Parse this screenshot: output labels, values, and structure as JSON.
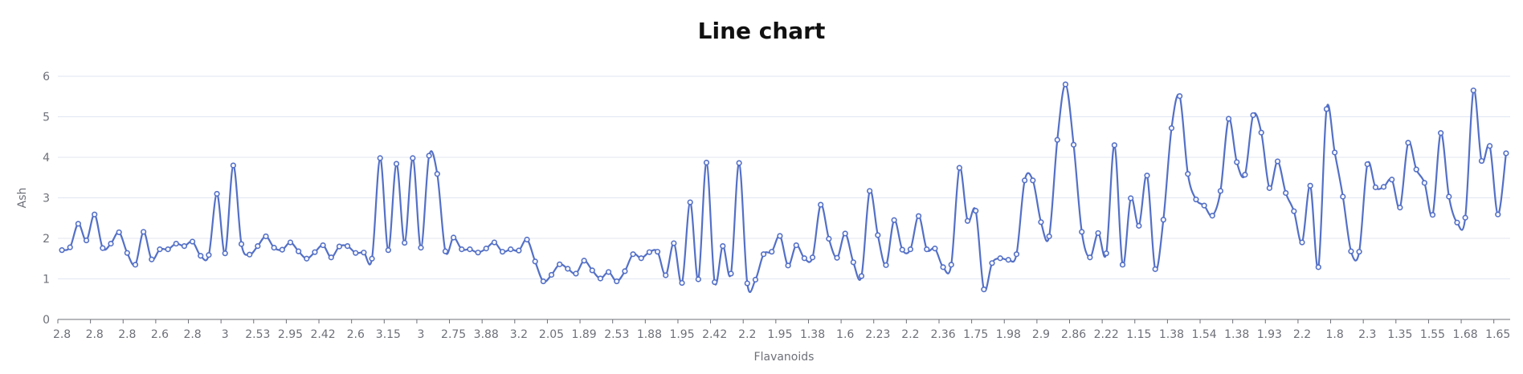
{
  "chart_data": {
    "type": "line",
    "title": "Line chart",
    "xlabel": "Flavanoids",
    "ylabel": "Ash",
    "ylim": [
      0,
      6
    ],
    "yticks": [
      0,
      1,
      2,
      3,
      4,
      5,
      6
    ],
    "grid": true,
    "smooth": true,
    "series_color": "#5470c6",
    "grid_color": "#e0e6f1",
    "axis_color": "#6e7079",
    "x_tick_labels": [
      "2.8",
      "2.8",
      "2.8",
      "2.6",
      "2.8",
      "3",
      "2.53",
      "2.95",
      "2.42",
      "2.6",
      "3.15",
      "3",
      "2.75",
      "3.88",
      "3.2",
      "2.05",
      "1.89",
      "2.53",
      "1.88",
      "1.95",
      "2.42",
      "2.2",
      "1.95",
      "1.38",
      "1.6",
      "2.23",
      "2.2",
      "2.36",
      "1.75",
      "1.98",
      "2.9",
      "2.86",
      "2.22",
      "1.15",
      "1.38",
      "1.54",
      "1.38",
      "1.93",
      "2.2",
      "1.8",
      "2.3",
      "1.35",
      "1.55",
      "1.68",
      "1.65"
    ],
    "values": [
      1.71,
      1.78,
      2.36,
      1.95,
      2.59,
      1.76,
      1.87,
      2.15,
      1.64,
      1.35,
      2.16,
      1.48,
      1.73,
      1.73,
      1.87,
      1.81,
      1.92,
      1.57,
      1.59,
      3.1,
      1.63,
      3.8,
      1.86,
      1.6,
      1.81,
      2.05,
      1.77,
      1.72,
      1.9,
      1.68,
      1.5,
      1.66,
      1.83,
      1.53,
      1.8,
      1.81,
      1.64,
      1.65,
      1.5,
      3.98,
      1.71,
      3.84,
      1.89,
      3.98,
      1.77,
      4.04,
      3.59,
      1.68,
      2.02,
      1.73,
      1.73,
      1.65,
      1.75,
      1.9,
      1.67,
      1.73,
      1.7,
      1.97,
      1.43,
      0.94,
      1.1,
      1.36,
      1.25,
      1.13,
      1.45,
      1.21,
      1.01,
      1.17,
      0.94,
      1.19,
      1.61,
      1.51,
      1.66,
      1.67,
      1.09,
      1.88,
      0.9,
      2.89,
      0.99,
      3.87,
      0.92,
      1.81,
      1.13,
      3.86,
      0.89,
      0.98,
      1.61,
      1.67,
      2.06,
      1.33,
      1.83,
      1.51,
      1.53,
      2.83,
      1.99,
      1.52,
      2.12,
      1.41,
      1.07,
      3.17,
      2.08,
      1.34,
      2.45,
      1.72,
      1.73,
      2.55,
      1.73,
      1.75,
      1.29,
      1.35,
      3.74,
      2.43,
      2.68,
      0.74,
      1.39,
      1.51,
      1.47,
      1.61,
      3.43,
      3.43,
      2.4,
      2.05,
      4.43,
      5.8,
      4.31,
      2.16,
      1.53,
      2.13,
      1.63,
      4.3,
      1.35,
      2.99,
      2.31,
      3.55,
      1.24,
      2.46,
      4.72,
      5.51,
      3.59,
      2.96,
      2.81,
      2.56,
      3.17,
      4.95,
      3.88,
      3.57,
      5.04,
      4.61,
      3.24,
      3.9,
      3.12,
      2.67,
      1.9,
      3.3,
      1.29,
      5.19,
      4.12,
      3.03,
      1.68,
      1.67,
      3.83,
      3.26,
      3.27,
      3.45,
      2.76,
      4.36,
      3.7,
      3.37,
      2.58,
      4.6,
      3.03,
      2.39,
      2.51,
      5.65,
      3.91,
      4.28,
      2.59,
      4.1
    ]
  }
}
